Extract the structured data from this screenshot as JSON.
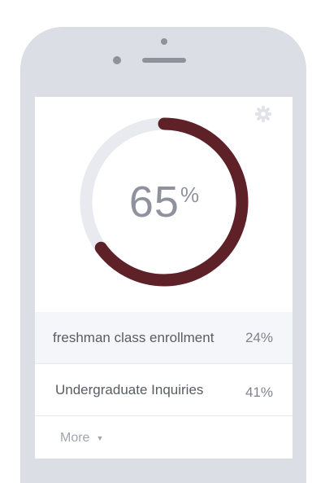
{
  "gauge": {
    "value": "65",
    "unit": "%",
    "progress": 65,
    "track_color": "#e8eaef",
    "fill_color": "#5e2127"
  },
  "settings_icon": "gear-icon",
  "rows": [
    {
      "label": "freshman class enrollment",
      "percent": "24%"
    },
    {
      "label": "Undergraduate Inquiries",
      "percent": "41%"
    }
  ],
  "more": {
    "label": "More",
    "icon": "caret-down-icon"
  }
}
